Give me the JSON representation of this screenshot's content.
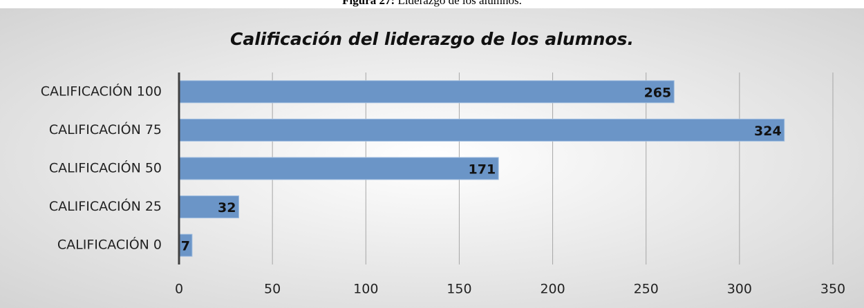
{
  "caption": {
    "label": "Figura 27:",
    "text": "Liderazgo de los alumnos."
  },
  "chart_data": {
    "type": "bar",
    "orientation": "horizontal",
    "title": "Calificación del liderazgo de los alumnos.",
    "categories": [
      "CALIFICACIÓN 100",
      "CALIFICACIÓN 75",
      "CALIFICACIÓN 50",
      "CALIFICACIÓN 25",
      "CALIFICACIÓN 0"
    ],
    "values": [
      265,
      324,
      171,
      32,
      7
    ],
    "color": "#6b95c7",
    "xlim": [
      0,
      350
    ],
    "xticks": [
      0,
      50,
      100,
      150,
      200,
      250,
      300,
      350
    ],
    "grid": true
  }
}
